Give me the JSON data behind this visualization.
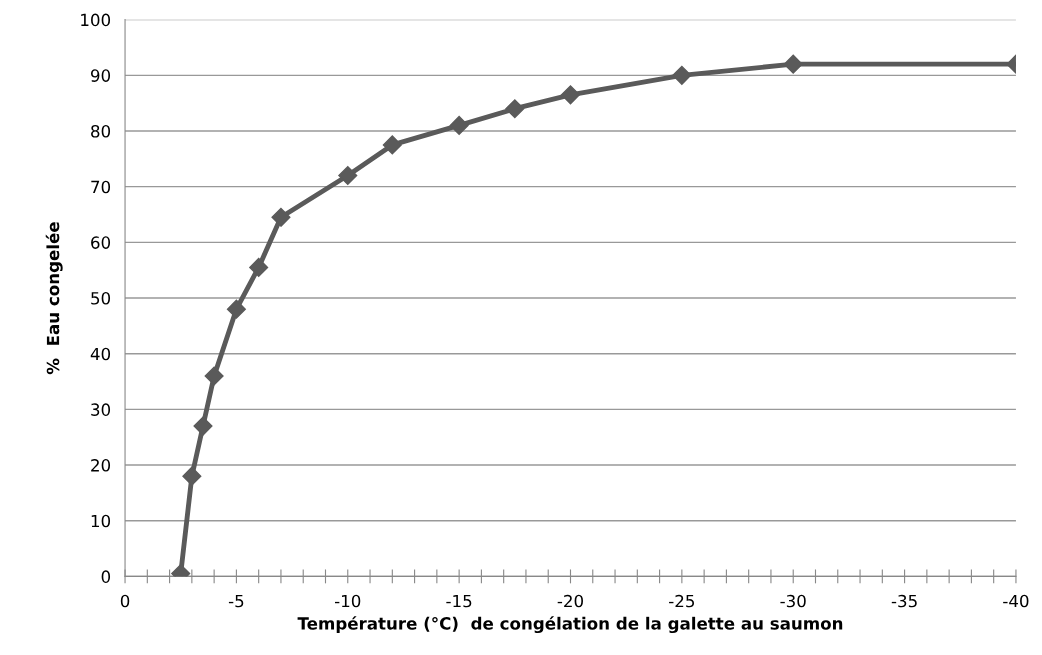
{
  "chart_data": {
    "type": "line",
    "xlabel": "Température (°C)  de congélation de la galette au saumon",
    "ylabel": "%  Eau congelée",
    "x": [
      -2.5,
      -3,
      -3.5,
      -4,
      -5,
      -6,
      -7,
      -10,
      -12,
      -15,
      -17.5,
      -20,
      -25,
      -30,
      -40
    ],
    "series": [
      {
        "color": "#5a5a5a",
        "values": [
          0.5,
          18,
          27,
          36,
          48,
          55.5,
          64.5,
          72,
          77.5,
          81,
          84,
          86.5,
          90,
          92,
          92
        ]
      }
    ],
    "xlim": [
      0,
      -40
    ],
    "xticks": [
      {
        "value": 0,
        "label": "0"
      },
      {
        "value": -1,
        "label": null
      },
      {
        "value": -2,
        "label": null
      },
      {
        "value": -3,
        "label": null
      },
      {
        "value": -4,
        "label": null
      },
      {
        "value": -5,
        "label": "-5"
      },
      {
        "value": -6,
        "label": null
      },
      {
        "value": -7,
        "label": null
      },
      {
        "value": -8,
        "label": null
      },
      {
        "value": -9,
        "label": null
      },
      {
        "value": -10,
        "label": "-10"
      },
      {
        "value": -11,
        "label": null
      },
      {
        "value": -12,
        "label": null
      },
      {
        "value": -13,
        "label": null
      },
      {
        "value": -14,
        "label": null
      },
      {
        "value": -15,
        "label": "-15"
      },
      {
        "value": -16,
        "label": null
      },
      {
        "value": -17,
        "label": null
      },
      {
        "value": -18,
        "label": null
      },
      {
        "value": -19,
        "label": null
      },
      {
        "value": -20,
        "label": "-20"
      },
      {
        "value": -21,
        "label": null
      },
      {
        "value": -22,
        "label": null
      },
      {
        "value": -23,
        "label": null
      },
      {
        "value": -24,
        "label": null
      },
      {
        "value": -25,
        "label": "-25"
      },
      {
        "value": -26,
        "label": null
      },
      {
        "value": -27,
        "label": null
      },
      {
        "value": -28,
        "label": null
      },
      {
        "value": -29,
        "label": null
      },
      {
        "value": -30,
        "label": "-30"
      },
      {
        "value": -31,
        "label": null
      },
      {
        "value": -32,
        "label": null
      },
      {
        "value": -33,
        "label": null
      },
      {
        "value": -34,
        "label": null
      },
      {
        "value": -35,
        "label": "-35"
      },
      {
        "value": -36,
        "label": null
      },
      {
        "value": -37,
        "label": null
      },
      {
        "value": -38,
        "label": null
      },
      {
        "value": -39,
        "label": null
      },
      {
        "value": -40,
        "label": "-40"
      }
    ],
    "ylim": [
      0,
      100
    ],
    "yticks": [
      0,
      10,
      20,
      30,
      40,
      50,
      60,
      70,
      80,
      90,
      100
    ],
    "grid": "y",
    "marker": "diamond",
    "line_style": "solid"
  }
}
